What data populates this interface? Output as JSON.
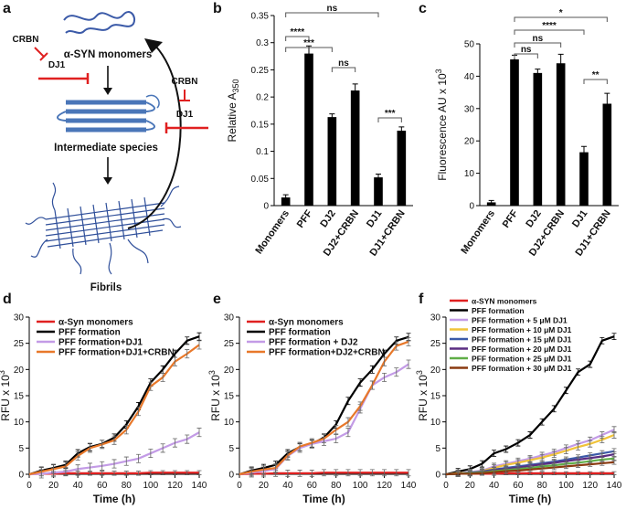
{
  "panels": {
    "a": "a",
    "b": "b",
    "c": "c",
    "d": "d",
    "e": "e",
    "f": "f"
  },
  "diagram": {
    "crbn_left": "CRBN",
    "dj1_left": "DJ1",
    "crbn_right": "CRBN",
    "dj1_right": "DJ1",
    "monomers_label": "α-SYN monomers",
    "intermediate_label": "Intermediate species",
    "fibrils_label": "Fibrils"
  },
  "colors": {
    "red": "#e02020",
    "black": "#000000",
    "purple": "#c39be6",
    "orange": "#e8782a",
    "yellow": "#f0c33a",
    "blue": "#3b5aa8",
    "green": "#5fae47",
    "brown": "#8a3a10",
    "steel": "#4a76b8",
    "darkred": "#b11a1a"
  },
  "chart_data": [
    {
      "panel": "b",
      "type": "bar",
      "title": "",
      "xlabel": "",
      "ylabel": "Relative A",
      "ylabel_sub": "350",
      "categories": [
        "Monomers",
        "PFF",
        "DJ2",
        "DJ2+CRBN",
        "DJ1",
        "DJ1+CRBN"
      ],
      "values": [
        0.015,
        0.28,
        0.163,
        0.212,
        0.052,
        0.138
      ],
      "errors": [
        0.005,
        0.014,
        0.006,
        0.012,
        0.006,
        0.007
      ],
      "ylim": [
        0,
        0.35
      ],
      "yticks": [
        "0",
        "0.05",
        "0.1",
        "0.15",
        "0.2",
        "0.25",
        "0.3",
        "0.35"
      ],
      "significance": [
        {
          "from": 0,
          "to": 1,
          "label": "****"
        },
        {
          "from": 0,
          "to": 2,
          "label": "***"
        },
        {
          "from": 0,
          "to": 4,
          "label": "ns"
        },
        {
          "from": 2,
          "to": 3,
          "label": "ns"
        },
        {
          "from": 4,
          "to": 5,
          "label": "***"
        }
      ]
    },
    {
      "panel": "c",
      "type": "bar",
      "title": "",
      "xlabel": "",
      "ylabel": "Fluorescence AU x 10",
      "ylabel_sup": "3",
      "categories": [
        "Monomers",
        "PFF",
        "DJ2",
        "DJ2+CRBN",
        "DJ1",
        "DJ1+CRBN"
      ],
      "values": [
        1.0,
        45.2,
        41.0,
        44.0,
        16.5,
        31.5
      ],
      "errors": [
        0.6,
        1.3,
        1.2,
        2.8,
        1.8,
        3.2
      ],
      "ylim": [
        0,
        50
      ],
      "yticks": [
        "0",
        "10",
        "20",
        "30",
        "40",
        "50"
      ],
      "significance": [
        {
          "from": 1,
          "to": 5,
          "label": "*"
        },
        {
          "from": 1,
          "to": 4,
          "label": "****"
        },
        {
          "from": 1,
          "to": 3,
          "label": "ns"
        },
        {
          "from": 1,
          "to": 2,
          "label": "ns"
        },
        {
          "from": 4,
          "to": 5,
          "label": "**"
        }
      ]
    },
    {
      "panel": "d",
      "type": "line",
      "xlabel": "Time (h)",
      "ylabel": "RFU x 10",
      "ylabel_sup": "3",
      "xlim": [
        0,
        140
      ],
      "ylim": [
        0,
        30
      ],
      "xticks": [
        "0",
        "20",
        "40",
        "60",
        "80",
        "100",
        "120",
        "140"
      ],
      "yticks": [
        "0",
        "5",
        "10",
        "15",
        "20",
        "25",
        "30"
      ],
      "x": [
        0,
        10,
        20,
        30,
        40,
        50,
        60,
        70,
        80,
        90,
        100,
        110,
        120,
        130,
        140
      ],
      "series": [
        {
          "name": "α-Syn monomers",
          "color": "#e02020",
          "values": [
            0,
            0.1,
            0.1,
            0.2,
            0.2,
            0.2,
            0.2,
            0.2,
            0.2,
            0.2,
            0.3,
            0.3,
            0.3,
            0.3,
            0.3
          ],
          "err": 0.4
        },
        {
          "name": "PFF formation",
          "color": "#000000",
          "values": [
            0,
            0.7,
            1.2,
            1.8,
            4.0,
            5.2,
            5.8,
            7.0,
            9.5,
            13.0,
            17.5,
            20.0,
            23.0,
            25.5,
            26.3
          ],
          "err": 0.7
        },
        {
          "name": "PFF formation+DJ1",
          "color": "#c39be6",
          "values": [
            0,
            0.1,
            0.3,
            0.5,
            1.0,
            1.3,
            1.6,
            2.0,
            2.5,
            3.0,
            4.0,
            5.0,
            6.0,
            6.7,
            8.0
          ],
          "err": 0.8
        },
        {
          "name": "PFF formation+DJ1+CRBN",
          "color": "#e8782a",
          "values": [
            0,
            0.5,
            1.0,
            1.5,
            3.5,
            5.0,
            5.7,
            6.5,
            8.5,
            12.0,
            16.8,
            18.5,
            21.5,
            23.0,
            24.7
          ],
          "err": 0.8
        }
      ]
    },
    {
      "panel": "e",
      "type": "line",
      "xlabel": "Time (h)",
      "ylabel": "RFU x 10",
      "ylabel_sup": "3",
      "xlim": [
        0,
        140
      ],
      "ylim": [
        0,
        30
      ],
      "xticks": [
        "0",
        "20",
        "40",
        "60",
        "80",
        "100",
        "120",
        "140"
      ],
      "yticks": [
        "0",
        "5",
        "10",
        "15",
        "20",
        "25",
        "30"
      ],
      "x": [
        0,
        10,
        20,
        30,
        40,
        50,
        60,
        70,
        80,
        90,
        100,
        110,
        120,
        130,
        140
      ],
      "series": [
        {
          "name": "α-Syn monomers",
          "color": "#e02020",
          "values": [
            0,
            0.1,
            0.1,
            0.2,
            0.2,
            0.2,
            0.2,
            0.3,
            0.3,
            0.3,
            0.3,
            0.3,
            0.3,
            0.3,
            0.3
          ],
          "err": 0.6
        },
        {
          "name": "PFF formation",
          "color": "#000000",
          "values": [
            0,
            0.7,
            1.2,
            1.8,
            4.0,
            5.2,
            5.8,
            7.0,
            9.5,
            14.0,
            17.5,
            20.0,
            23.0,
            25.5,
            26.2
          ],
          "err": 0.7
        },
        {
          "name": "PFF formation + DJ2",
          "color": "#c39be6",
          "values": [
            0,
            0.3,
            0.6,
            1.0,
            3.5,
            5.0,
            5.8,
            6.3,
            6.8,
            8.0,
            12.5,
            17.0,
            18.5,
            19.5,
            21.0
          ],
          "err": 0.8
        },
        {
          "name": "PFF formation+DJ2+CRBN",
          "color": "#e8782a",
          "values": [
            0,
            0.5,
            0.9,
            1.2,
            3.6,
            5.3,
            6.0,
            6.8,
            8.5,
            10.0,
            13.0,
            17.0,
            21.5,
            24.5,
            25.3
          ],
          "err": 0.8
        }
      ]
    },
    {
      "panel": "f",
      "type": "line",
      "xlabel": "Time (h)",
      "ylabel": "RFU x 10",
      "ylabel_sup": "3",
      "xlim": [
        0,
        140
      ],
      "ylim": [
        0,
        30
      ],
      "xticks": [
        "0",
        "20",
        "40",
        "60",
        "80",
        "100",
        "120",
        "140"
      ],
      "yticks": [
        "0",
        "5",
        "10",
        "15",
        "20",
        "25",
        "30"
      ],
      "x": [
        0,
        10,
        20,
        30,
        40,
        50,
        60,
        70,
        80,
        90,
        100,
        110,
        120,
        130,
        140
      ],
      "series": [
        {
          "name": "α-SYN monomers",
          "color": "#e02020",
          "values": [
            0,
            0.1,
            0.1,
            0.1,
            0.1,
            0.2,
            0.2,
            0.2,
            0.2,
            0.2,
            0.2,
            0.2,
            0.2,
            0.2,
            0.2
          ],
          "err": 0.3
        },
        {
          "name": "PFF formation",
          "color": "#000000",
          "values": [
            0,
            0.5,
            1.0,
            2.0,
            4.0,
            4.8,
            6.0,
            7.5,
            10.0,
            12.5,
            16.0,
            19.5,
            21.0,
            25.5,
            26.3
          ],
          "err": 0.6
        },
        {
          "name": "PFF formation + 5 μM DJ1",
          "color": "#c39be6",
          "values": [
            0,
            0.2,
            0.4,
            0.7,
            1.5,
            2.0,
            2.5,
            3.0,
            3.6,
            4.2,
            5.0,
            5.8,
            6.5,
            7.5,
            8.5
          ],
          "err": 0.6
        },
        {
          "name": "PFF formation + 10 μM DJ1",
          "color": "#f0c33a",
          "values": [
            0,
            0.2,
            0.3,
            0.6,
            1.2,
            1.8,
            2.2,
            2.7,
            3.2,
            3.8,
            4.5,
            5.2,
            5.8,
            6.6,
            7.5
          ],
          "err": 0.6
        },
        {
          "name": "PFF formation + 15 μM DJ1",
          "color": "#3b5aa8",
          "values": [
            0,
            0.1,
            0.3,
            0.5,
            0.9,
            1.2,
            1.5,
            1.8,
            2.1,
            2.4,
            2.8,
            3.2,
            3.6,
            4.0,
            4.4
          ],
          "err": 0.5
        },
        {
          "name": "PFF formation + 20 μM DJ1",
          "color": "#5a2d82",
          "values": [
            0,
            0.1,
            0.2,
            0.4,
            0.8,
            1.0,
            1.3,
            1.6,
            1.9,
            2.2,
            2.5,
            2.8,
            3.1,
            3.4,
            3.8
          ],
          "err": 0.5
        },
        {
          "name": "PFF formation + 25 μM DJ1",
          "color": "#5fae47",
          "values": [
            0,
            0.1,
            0.2,
            0.3,
            0.6,
            0.8,
            1.0,
            1.2,
            1.5,
            1.7,
            2.0,
            2.2,
            2.5,
            2.8,
            3.0
          ],
          "err": 0.4
        },
        {
          "name": "PFF formation + 30 μM DJ1",
          "color": "#8a3a10",
          "values": [
            0,
            0.1,
            0.1,
            0.2,
            0.4,
            0.6,
            0.7,
            0.9,
            1.1,
            1.3,
            1.5,
            1.7,
            1.9,
            2.1,
            2.3
          ],
          "err": 0.4
        }
      ]
    }
  ]
}
